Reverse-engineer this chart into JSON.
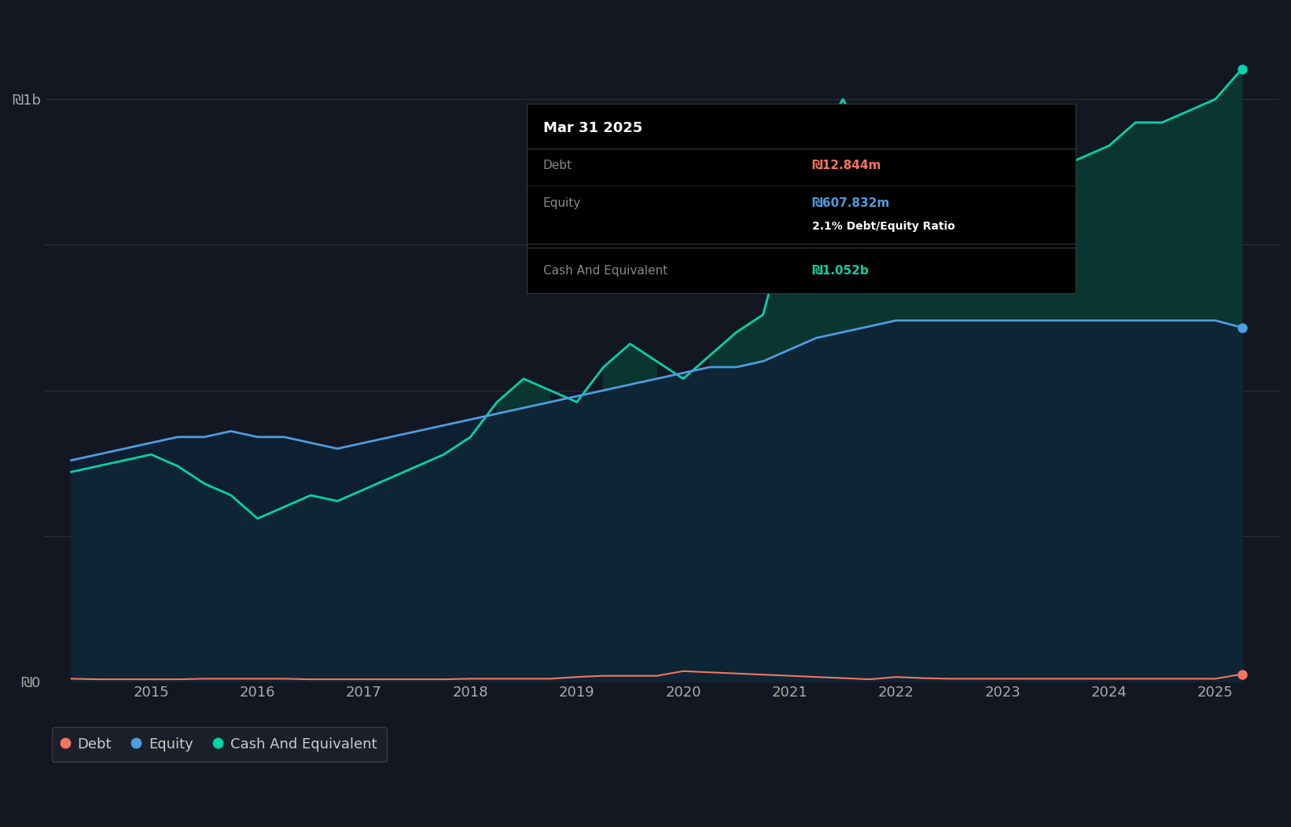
{
  "bg_color": "#131722",
  "plot_bg_color": "#131722",
  "grid_color": "#2a2e39",
  "tooltip_title": "Mar 31 2025",
  "tooltip_debt_label": "Debt",
  "tooltip_debt_value": "₪12.844m",
  "tooltip_equity_label": "Equity",
  "tooltip_equity_value": "₪607.832m",
  "tooltip_ratio": "2.1% Debt/Equity Ratio",
  "tooltip_cash_label": "Cash And Equivalent",
  "tooltip_cash_value": "₪1.052b",
  "y_label_top": "₪1b",
  "y_label_bottom": "₪0",
  "x_ticks": [
    "2015",
    "2016",
    "2017",
    "2018",
    "2019",
    "2020",
    "2021",
    "2022",
    "2023",
    "2024",
    "2025"
  ],
  "legend_items": [
    {
      "label": "Debt",
      "color": "#f47560"
    },
    {
      "label": "Equity",
      "color": "#4d9de0"
    },
    {
      "label": "Cash And Equivalent",
      "color": "#00d4aa"
    }
  ],
  "debt_color": "#f47560",
  "equity_color": "#4d9de0",
  "cash_color": "#00d4aa",
  "ylim": [
    0,
    1.15
  ],
  "xlim_start": 2014.0,
  "xlim_end": 2025.6,
  "years": [
    2014.25,
    2014.5,
    2014.75,
    2015.0,
    2015.25,
    2015.5,
    2015.75,
    2016.0,
    2016.25,
    2016.5,
    2016.75,
    2017.0,
    2017.25,
    2017.5,
    2017.75,
    2018.0,
    2018.25,
    2018.5,
    2018.75,
    2019.0,
    2019.25,
    2019.5,
    2019.75,
    2020.0,
    2020.25,
    2020.5,
    2020.75,
    2021.0,
    2021.25,
    2021.5,
    2021.75,
    2022.0,
    2022.25,
    2022.5,
    2022.75,
    2023.0,
    2023.25,
    2023.5,
    2023.75,
    2024.0,
    2024.25,
    2024.5,
    2024.75,
    2025.0,
    2025.25
  ],
  "equity_values": [
    0.38,
    0.39,
    0.4,
    0.41,
    0.42,
    0.42,
    0.43,
    0.42,
    0.42,
    0.41,
    0.4,
    0.41,
    0.42,
    0.43,
    0.44,
    0.45,
    0.46,
    0.47,
    0.48,
    0.49,
    0.5,
    0.51,
    0.52,
    0.53,
    0.54,
    0.54,
    0.55,
    0.57,
    0.59,
    0.6,
    0.61,
    0.62,
    0.62,
    0.62,
    0.62,
    0.62,
    0.62,
    0.62,
    0.62,
    0.62,
    0.62,
    0.62,
    0.62,
    0.62,
    0.608
  ],
  "cash_values": [
    0.36,
    0.37,
    0.38,
    0.39,
    0.37,
    0.34,
    0.32,
    0.28,
    0.3,
    0.32,
    0.31,
    0.33,
    0.35,
    0.37,
    0.39,
    0.42,
    0.48,
    0.52,
    0.5,
    0.48,
    0.54,
    0.58,
    0.55,
    0.52,
    0.56,
    0.6,
    0.63,
    0.8,
    0.92,
    1.0,
    0.92,
    0.88,
    0.96,
    0.88,
    0.86,
    0.9,
    0.88,
    0.88,
    0.9,
    0.92,
    0.96,
    0.96,
    0.98,
    1.0,
    1.052
  ],
  "debt_values": [
    0.005,
    0.004,
    0.004,
    0.004,
    0.004,
    0.005,
    0.005,
    0.005,
    0.005,
    0.004,
    0.004,
    0.004,
    0.004,
    0.004,
    0.004,
    0.005,
    0.005,
    0.005,
    0.005,
    0.008,
    0.01,
    0.01,
    0.01,
    0.018,
    0.016,
    0.014,
    0.012,
    0.01,
    0.008,
    0.006,
    0.004,
    0.008,
    0.006,
    0.005,
    0.005,
    0.005,
    0.005,
    0.005,
    0.005,
    0.005,
    0.005,
    0.005,
    0.005,
    0.005,
    0.01284
  ]
}
